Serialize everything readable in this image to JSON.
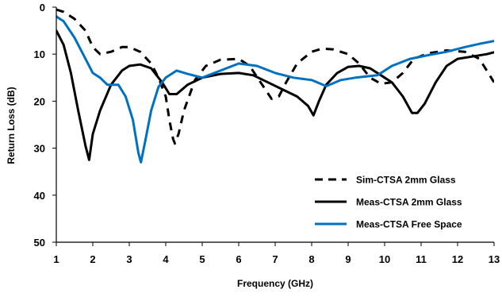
{
  "chart_data": {
    "type": "line",
    "title": "",
    "xlabel": "Frequency (GHz)",
    "ylabel": "Return Loss (dB)",
    "xlim": [
      1,
      13
    ],
    "ylim": [
      0,
      50
    ],
    "y_inverted": true,
    "x_ticks": [
      "1",
      "2",
      "3",
      "4",
      "5",
      "6",
      "7",
      "8",
      "9",
      "10",
      "11",
      "12",
      "13"
    ],
    "y_ticks": [
      "0",
      "10",
      "20",
      "30",
      "40",
      "50"
    ],
    "grid": false,
    "legend_position": "bottom-right",
    "series": [
      {
        "name": "Sim-CTSA 2mm Glass",
        "color": "#000000",
        "style": "dashed",
        "points": [
          [
            1.0,
            0.5
          ],
          [
            1.2,
            1.0
          ],
          [
            1.5,
            2.5
          ],
          [
            1.8,
            5.0
          ],
          [
            2.0,
            8.5
          ],
          [
            2.2,
            10.0
          ],
          [
            2.5,
            9.5
          ],
          [
            2.8,
            8.5
          ],
          [
            3.0,
            8.5
          ],
          [
            3.3,
            9.5
          ],
          [
            3.6,
            12.0
          ],
          [
            3.8,
            15.0
          ],
          [
            4.0,
            19.0
          ],
          [
            4.1,
            24.0
          ],
          [
            4.2,
            28.0
          ],
          [
            4.25,
            29.0
          ],
          [
            4.35,
            27.0
          ],
          [
            4.5,
            22.0
          ],
          [
            4.8,
            15.5
          ],
          [
            5.1,
            12.5
          ],
          [
            5.5,
            11.2
          ],
          [
            6.0,
            11.0
          ],
          [
            6.3,
            12.5
          ],
          [
            6.6,
            16.0
          ],
          [
            6.9,
            19.5
          ],
          [
            7.1,
            19.0
          ],
          [
            7.3,
            16.0
          ],
          [
            7.6,
            12.0
          ],
          [
            8.0,
            9.5
          ],
          [
            8.3,
            8.8
          ],
          [
            8.6,
            9.0
          ],
          [
            9.0,
            10.0
          ],
          [
            9.3,
            12.0
          ],
          [
            9.6,
            15.0
          ],
          [
            9.9,
            16.3
          ],
          [
            10.2,
            16.0
          ],
          [
            10.5,
            14.0
          ],
          [
            10.8,
            11.0
          ],
          [
            11.2,
            9.8
          ],
          [
            11.7,
            9.2
          ],
          [
            12.2,
            9.5
          ],
          [
            12.6,
            11.0
          ],
          [
            12.8,
            13.5
          ],
          [
            13.0,
            16.0
          ]
        ]
      },
      {
        "name": "Meas-CTSA 2mm Glass",
        "color": "#000000",
        "style": "solid",
        "points": [
          [
            1.0,
            5.0
          ],
          [
            1.2,
            8.0
          ],
          [
            1.4,
            14.0
          ],
          [
            1.6,
            22.0
          ],
          [
            1.8,
            29.5
          ],
          [
            1.9,
            32.5
          ],
          [
            2.0,
            27.0
          ],
          [
            2.2,
            22.0
          ],
          [
            2.5,
            16.5
          ],
          [
            2.8,
            13.5
          ],
          [
            3.0,
            12.5
          ],
          [
            3.3,
            12.2
          ],
          [
            3.6,
            13.0
          ],
          [
            3.9,
            16.0
          ],
          [
            4.1,
            18.5
          ],
          [
            4.3,
            18.5
          ],
          [
            4.6,
            16.5
          ],
          [
            5.0,
            15.0
          ],
          [
            5.5,
            14.2
          ],
          [
            6.0,
            14.0
          ],
          [
            6.4,
            14.5
          ],
          [
            6.8,
            16.0
          ],
          [
            7.2,
            17.5
          ],
          [
            7.6,
            19.0
          ],
          [
            7.9,
            21.0
          ],
          [
            8.05,
            23.0
          ],
          [
            8.2,
            20.0
          ],
          [
            8.4,
            16.5
          ],
          [
            8.7,
            14.0
          ],
          [
            9.0,
            12.7
          ],
          [
            9.3,
            12.5
          ],
          [
            9.6,
            13.0
          ],
          [
            9.9,
            14.5
          ],
          [
            10.2,
            16.0
          ],
          [
            10.5,
            19.0
          ],
          [
            10.75,
            22.5
          ],
          [
            10.9,
            22.5
          ],
          [
            11.1,
            20.5
          ],
          [
            11.4,
            16.0
          ],
          [
            11.7,
            12.5
          ],
          [
            12.0,
            11.0
          ],
          [
            12.4,
            10.5
          ],
          [
            12.8,
            10.0
          ],
          [
            13.0,
            9.6
          ]
        ]
      },
      {
        "name": "Meas-CTSA Free Space",
        "color": "#0070C0",
        "style": "solid",
        "points": [
          [
            1.0,
            2.0
          ],
          [
            1.2,
            3.0
          ],
          [
            1.5,
            6.5
          ],
          [
            1.8,
            11.0
          ],
          [
            2.0,
            14.0
          ],
          [
            2.2,
            15.0
          ],
          [
            2.4,
            16.5
          ],
          [
            2.7,
            16.5
          ],
          [
            2.9,
            19.0
          ],
          [
            3.1,
            24.0
          ],
          [
            3.25,
            31.0
          ],
          [
            3.32,
            33.0
          ],
          [
            3.45,
            28.0
          ],
          [
            3.6,
            22.0
          ],
          [
            3.8,
            17.0
          ],
          [
            4.0,
            15.0
          ],
          [
            4.3,
            13.5
          ],
          [
            4.6,
            14.2
          ],
          [
            5.0,
            15.0
          ],
          [
            5.5,
            13.5
          ],
          [
            6.0,
            12.0
          ],
          [
            6.5,
            12.5
          ],
          [
            7.0,
            14.0
          ],
          [
            7.5,
            15.0
          ],
          [
            8.0,
            15.5
          ],
          [
            8.4,
            16.8
          ],
          [
            8.8,
            15.5
          ],
          [
            9.2,
            15.0
          ],
          [
            9.8,
            14.5
          ],
          [
            10.2,
            12.5
          ],
          [
            10.7,
            11.0
          ],
          [
            11.2,
            10.2
          ],
          [
            11.7,
            9.5
          ],
          [
            12.2,
            8.5
          ],
          [
            12.6,
            7.8
          ],
          [
            13.0,
            7.2
          ]
        ]
      }
    ]
  }
}
